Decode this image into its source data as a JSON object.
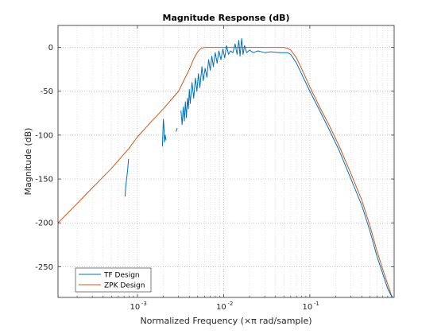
{
  "chart_data": {
    "type": "line",
    "title": "Magnitude Response (dB)",
    "xlabel": "Normalized Frequency (×π rad/sample)",
    "ylabel": "Magnitude (dB)",
    "xscale": "log",
    "xlim": [
      0.00012,
      0.95
    ],
    "ylim": [
      -285,
      25
    ],
    "x_ticks": [
      0.001,
      0.01,
      0.1
    ],
    "x_tick_labels": [
      {
        "base": "10",
        "exp": "-3"
      },
      {
        "base": "10",
        "exp": "-2"
      },
      {
        "base": "10",
        "exp": "-1"
      }
    ],
    "y_ticks": [
      0,
      -50,
      -100,
      -150,
      -200,
      -250
    ],
    "y_tick_labels": [
      "0",
      "-50",
      "-100",
      "-150",
      "-200",
      "-250"
    ],
    "grid": "on",
    "legend_location": "bottom-left",
    "series": [
      {
        "name": "TF Design",
        "color": "#0072bd",
        "segments": [
          [
            [
              0.00072,
              -170
            ],
            [
              0.00073,
              -160
            ],
            [
              0.00075,
              -150
            ],
            [
              0.00077,
              -140
            ],
            [
              0.00079,
              -127
            ]
          ],
          [
            [
              0.00195,
              -113
            ],
            [
              0.00197,
              -100
            ],
            [
              0.002,
              -82
            ],
            [
              0.00203,
              -90
            ],
            [
              0.00206,
              -108
            ],
            [
              0.0021,
              -100
            ],
            [
              0.00215,
              -106
            ]
          ],
          [
            [
              0.0028,
              -96
            ],
            [
              0.0029,
              -92
            ]
          ],
          [
            [
              0.0032,
              -72
            ],
            [
              0.0033,
              -88
            ],
            [
              0.0034,
              -68
            ],
            [
              0.0035,
              -84
            ],
            [
              0.0036,
              -62
            ],
            [
              0.0037,
              -80
            ],
            [
              0.0038,
              -58
            ],
            [
              0.0039,
              -70
            ],
            [
              0.004,
              -48
            ],
            [
              0.0041,
              -64
            ],
            [
              0.0043,
              -40
            ],
            [
              0.0045,
              -58
            ],
            [
              0.0047,
              -35
            ],
            [
              0.0049,
              -50
            ],
            [
              0.0051,
              -30
            ],
            [
              0.0053,
              -46
            ],
            [
              0.0056,
              -22
            ],
            [
              0.0058,
              -38
            ],
            [
              0.0061,
              -24
            ],
            [
              0.0064,
              -34
            ],
            [
              0.0067,
              -14
            ],
            [
              0.007,
              -26
            ],
            [
              0.0073,
              -10
            ],
            [
              0.0076,
              -22
            ],
            [
              0.008,
              -6
            ],
            [
              0.0084,
              -18
            ],
            [
              0.0088,
              -4
            ],
            [
              0.0093,
              -14
            ],
            [
              0.0098,
              -2
            ],
            [
              0.0103,
              -12
            ],
            [
              0.0108,
              2
            ],
            [
              0.0114,
              -8
            ],
            [
              0.012,
              -4
            ],
            [
              0.0128,
              -6
            ],
            [
              0.0136,
              4
            ],
            [
              0.0143,
              -8
            ],
            [
              0.015,
              8
            ],
            [
              0.0155,
              -10
            ],
            [
              0.0162,
              10
            ],
            [
              0.0168,
              -8
            ],
            [
              0.0175,
              2
            ],
            [
              0.0185,
              -6
            ],
            [
              0.02,
              -3
            ],
            [
              0.022,
              -6
            ],
            [
              0.025,
              -4
            ],
            [
              0.03,
              -6
            ],
            [
              0.035,
              -5
            ],
            [
              0.045,
              -6
            ],
            [
              0.055,
              -6
            ],
            [
              0.06,
              -8
            ],
            [
              0.07,
              -18
            ],
            [
              0.08,
              -30
            ],
            [
              0.1,
              -50
            ],
            [
              0.13,
              -72
            ],
            [
              0.17,
              -95
            ],
            [
              0.22,
              -118
            ],
            [
              0.3,
              -150
            ],
            [
              0.4,
              -180
            ],
            [
              0.5,
              -210
            ],
            [
              0.6,
              -238
            ],
            [
              0.7,
              -258
            ],
            [
              0.8,
              -275
            ],
            [
              0.9,
              -285
            ]
          ]
        ]
      },
      {
        "name": "ZPK Design",
        "color": "#d95319",
        "segments": [
          [
            [
              0.00012,
              -200
            ],
            [
              0.0002,
              -178
            ],
            [
              0.0003,
              -160
            ],
            [
              0.0005,
              -138
            ],
            [
              0.0008,
              -115
            ],
            [
              0.001,
              -102
            ],
            [
              0.0015,
              -83
            ],
            [
              0.002,
              -70
            ],
            [
              0.003,
              -50
            ],
            [
              0.004,
              -25
            ],
            [
              0.0045,
              -13
            ],
            [
              0.005,
              -5
            ],
            [
              0.0055,
              -1
            ],
            [
              0.006,
              0
            ],
            [
              0.01,
              0
            ],
            [
              0.02,
              0
            ],
            [
              0.05,
              0
            ],
            [
              0.055,
              -1
            ],
            [
              0.06,
              -3
            ],
            [
              0.07,
              -12
            ],
            [
              0.08,
              -24
            ],
            [
              0.1,
              -45
            ],
            [
              0.13,
              -68
            ],
            [
              0.17,
              -90
            ],
            [
              0.22,
              -113
            ],
            [
              0.3,
              -144
            ],
            [
              0.4,
              -174
            ],
            [
              0.5,
              -204
            ],
            [
              0.6,
              -232
            ],
            [
              0.7,
              -253
            ],
            [
              0.8,
              -270
            ],
            [
              0.9,
              -285
            ]
          ]
        ]
      }
    ]
  }
}
